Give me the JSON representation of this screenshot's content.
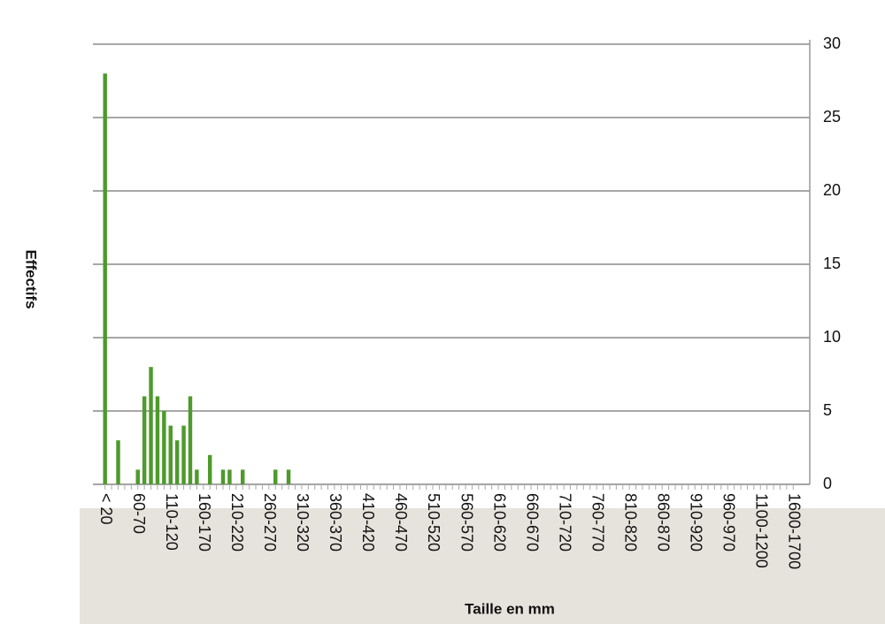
{
  "chart_data": {
    "type": "bar",
    "x_label": "Taille en mm",
    "y_label": "Effectifs",
    "categories": [
      "< 20",
      null,
      null,
      null,
      null,
      "60-70",
      null,
      null,
      null,
      null,
      "110-120",
      null,
      null,
      null,
      null,
      "160-170",
      null,
      null,
      null,
      null,
      "210-220",
      null,
      null,
      null,
      null,
      "260-270",
      null,
      null,
      null,
      null,
      "310-320",
      null,
      null,
      null,
      null,
      "360-370",
      null,
      null,
      null,
      null,
      "410-420",
      null,
      null,
      null,
      null,
      "460-470",
      null,
      null,
      null,
      null,
      "510-520",
      null,
      null,
      null,
      null,
      "560-570",
      null,
      null,
      null,
      null,
      "610-620",
      null,
      null,
      null,
      null,
      "660-670",
      null,
      null,
      null,
      null,
      "710-720",
      null,
      null,
      null,
      null,
      "760-770",
      null,
      null,
      null,
      null,
      "810-820",
      null,
      null,
      null,
      null,
      "860-870",
      null,
      null,
      null,
      null,
      "910-920",
      null,
      null,
      null,
      null,
      "960-970",
      null,
      null,
      null,
      null,
      "1100-1200",
      null,
      null,
      null,
      null,
      "1600-1700"
    ],
    "values": [
      28,
      0,
      3,
      0,
      0,
      1,
      6,
      8,
      6,
      5,
      4,
      3,
      4,
      6,
      1,
      0,
      2,
      0,
      1,
      1,
      0,
      1,
      0,
      0,
      0,
      0,
      1,
      0,
      1,
      0,
      0,
      0,
      0,
      0,
      0,
      0,
      0,
      0,
      0,
      0,
      0,
      0,
      0,
      0,
      0,
      0,
      0,
      0,
      0,
      0,
      0,
      0,
      0,
      0,
      0,
      0,
      0,
      0,
      0,
      0,
      0,
      0,
      0,
      0,
      0,
      0,
      0,
      0,
      0,
      0,
      0,
      0,
      0,
      0,
      0,
      0,
      0,
      0,
      0,
      0,
      0,
      0,
      0,
      0,
      0,
      0,
      0,
      0,
      0,
      0,
      0,
      0,
      0,
      0,
      0,
      0,
      0,
      0,
      0,
      0,
      0,
      0,
      0,
      0,
      0,
      0
    ],
    "color": "#4e9a2c",
    "ylim": [
      0,
      30
    ],
    "yticks": [
      0,
      5,
      10,
      15,
      20,
      25,
      30
    ],
    "grid": true,
    "y_axis_side": "right"
  }
}
